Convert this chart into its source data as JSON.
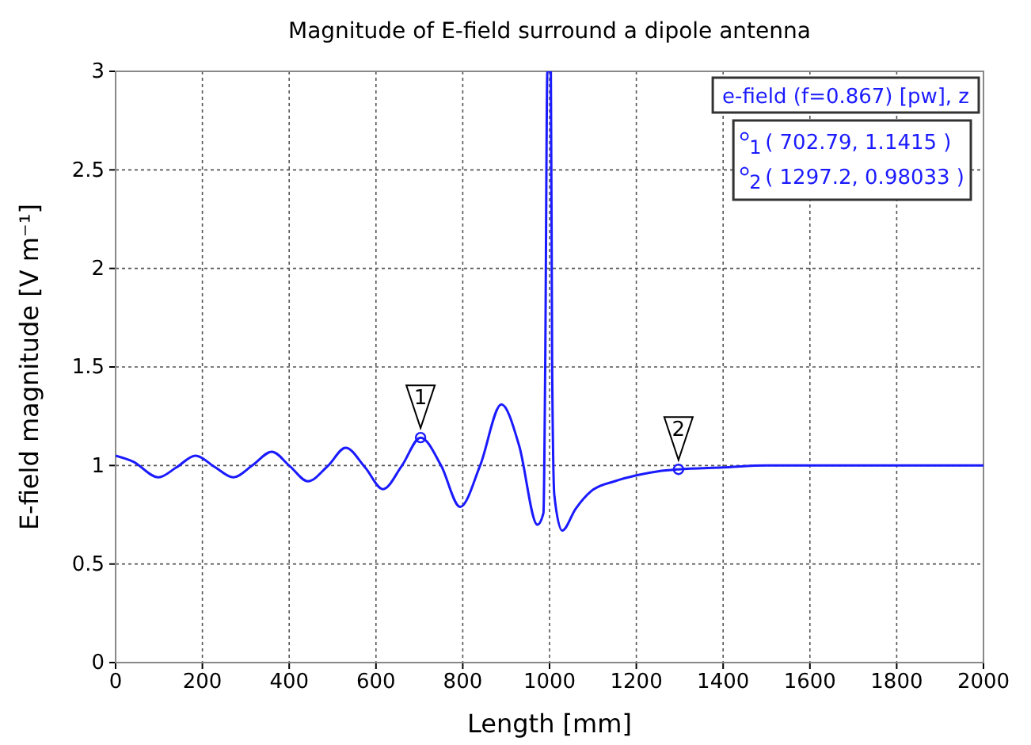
{
  "chart_data": {
    "type": "line",
    "title": "Magnitude of E-field surround a dipole antenna",
    "xlabel": "Length [mm]",
    "ylabel": "E-field magnitude [V m⁻¹]",
    "series": [
      {
        "name": "e-field (f=0.867) [pw], z",
        "color": "#1a1aff",
        "x": [
          0,
          40,
          99,
          140,
          184,
          230,
          271,
          315,
          360,
          400,
          443,
          490,
          530,
          575,
          616,
          660,
          702.79,
          750,
          794,
          840,
          889,
          930,
          972,
          986,
          990,
          995,
          1003,
          1006,
          1011,
          1029,
          1060,
          1096,
          1150,
          1200,
          1250,
          1297.2,
          1400,
          1500,
          1601,
          1800,
          2000
        ],
        "values": [
          1.05,
          1.02,
          0.94,
          0.99,
          1.05,
          0.99,
          0.94,
          1.0,
          1.07,
          1.0,
          0.92,
          1.0,
          1.09,
          0.99,
          0.88,
          1.0,
          1.1415,
          1.0,
          0.79,
          1.0,
          1.31,
          1.1,
          0.7,
          0.76,
          1.5,
          3,
          3,
          1.5,
          0.85,
          0.67,
          0.78,
          0.87,
          0.92,
          0.95,
          0.97,
          0.98033,
          0.99,
          1.0,
          1.0,
          1.0,
          1.0
        ]
      }
    ],
    "xlim": [
      0,
      2000
    ],
    "xticks": [
      0,
      200,
      400,
      600,
      800,
      1000,
      1200,
      1400,
      1600,
      1800,
      2000
    ],
    "ylim": [
      0,
      3
    ],
    "yticks": [
      0,
      0.5,
      1,
      1.5,
      2,
      2.5,
      3
    ],
    "grid": true,
    "legend": "top right",
    "marker": "none",
    "line_style": "solid",
    "annotations": [
      {
        "text": "1",
        "x": 702.79,
        "y": 1.1415
      },
      {
        "text": "2",
        "x": 1297.2,
        "y": 0.98033
      },
      "( 702.79, 1.1415 )",
      "( 1297.2, 0.98033 )"
    ]
  }
}
